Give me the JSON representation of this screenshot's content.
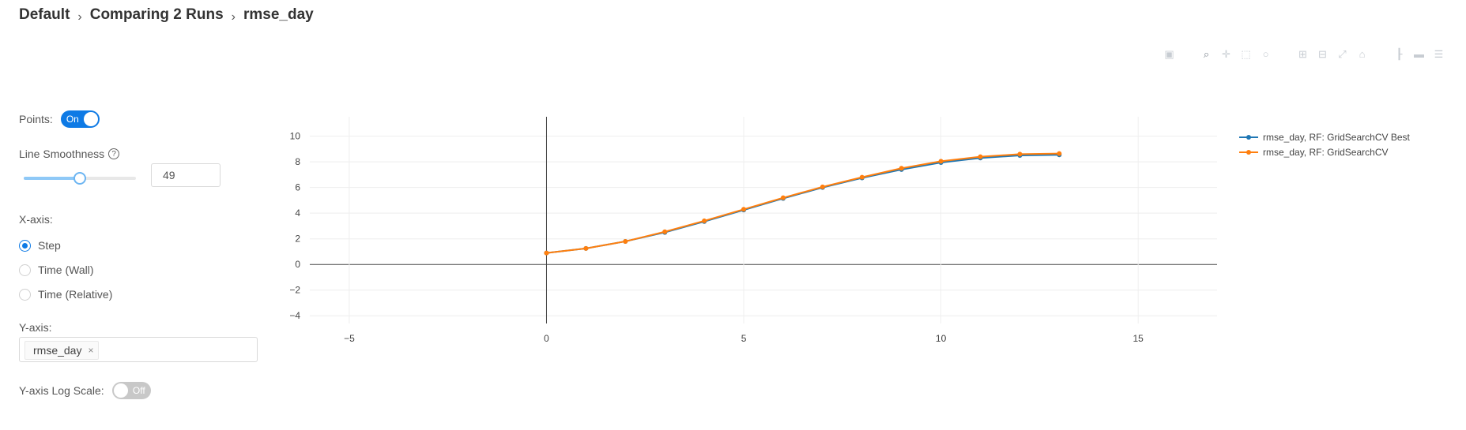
{
  "breadcrumb": {
    "items": [
      "Default",
      "Comparing 2 Runs",
      "rmse_day"
    ]
  },
  "controls": {
    "points": {
      "label": "Points:",
      "state": "On"
    },
    "smoothness": {
      "label": "Line Smoothness",
      "help": "?",
      "value": "49",
      "slider_fraction": 0.49
    },
    "xaxis": {
      "label": "X-axis:",
      "options": [
        "Step",
        "Time (Wall)",
        "Time (Relative)"
      ],
      "selected": "Step"
    },
    "yaxis": {
      "label": "Y-axis:",
      "tag": "rmse_day",
      "tag_remove": "×"
    },
    "log_scale": {
      "label": "Y-axis Log Scale:",
      "state": "Off"
    }
  },
  "toolbar": {
    "icons": [
      "camera-icon",
      "zoom-icon",
      "pan-icon",
      "box-select-icon",
      "lasso-select-icon",
      "zoom-in-icon",
      "zoom-out-icon",
      "autoscale-icon",
      "reset-axes-icon",
      "spike-lines-icon",
      "closest-hover-icon",
      "compare-hover-icon"
    ]
  },
  "chart_data": {
    "type": "line",
    "xlim": [
      -6,
      17
    ],
    "ylim": [
      -4.6,
      10.9
    ],
    "xticks": [
      -5,
      0,
      5,
      10,
      15
    ],
    "yticks": [
      -4,
      -2,
      0,
      2,
      4,
      6,
      8,
      10
    ],
    "grid": true,
    "legend_position": "right",
    "x": [
      0,
      1,
      2,
      3,
      4,
      5,
      6,
      7,
      8,
      9,
      10,
      11,
      12,
      13
    ],
    "series": [
      {
        "name": "rmse_day, RF: GridSearchCV Best",
        "color": "#1f77b4",
        "values": [
          0.9,
          1.25,
          1.8,
          2.5,
          3.35,
          4.25,
          5.15,
          6.0,
          6.75,
          7.4,
          7.95,
          8.3,
          8.5,
          8.55
        ]
      },
      {
        "name": "rmse_day, RF: GridSearchCV",
        "color": "#ff7f0e",
        "values": [
          0.9,
          1.25,
          1.8,
          2.55,
          3.4,
          4.3,
          5.2,
          6.05,
          6.8,
          7.5,
          8.05,
          8.4,
          8.6,
          8.65
        ]
      }
    ]
  }
}
